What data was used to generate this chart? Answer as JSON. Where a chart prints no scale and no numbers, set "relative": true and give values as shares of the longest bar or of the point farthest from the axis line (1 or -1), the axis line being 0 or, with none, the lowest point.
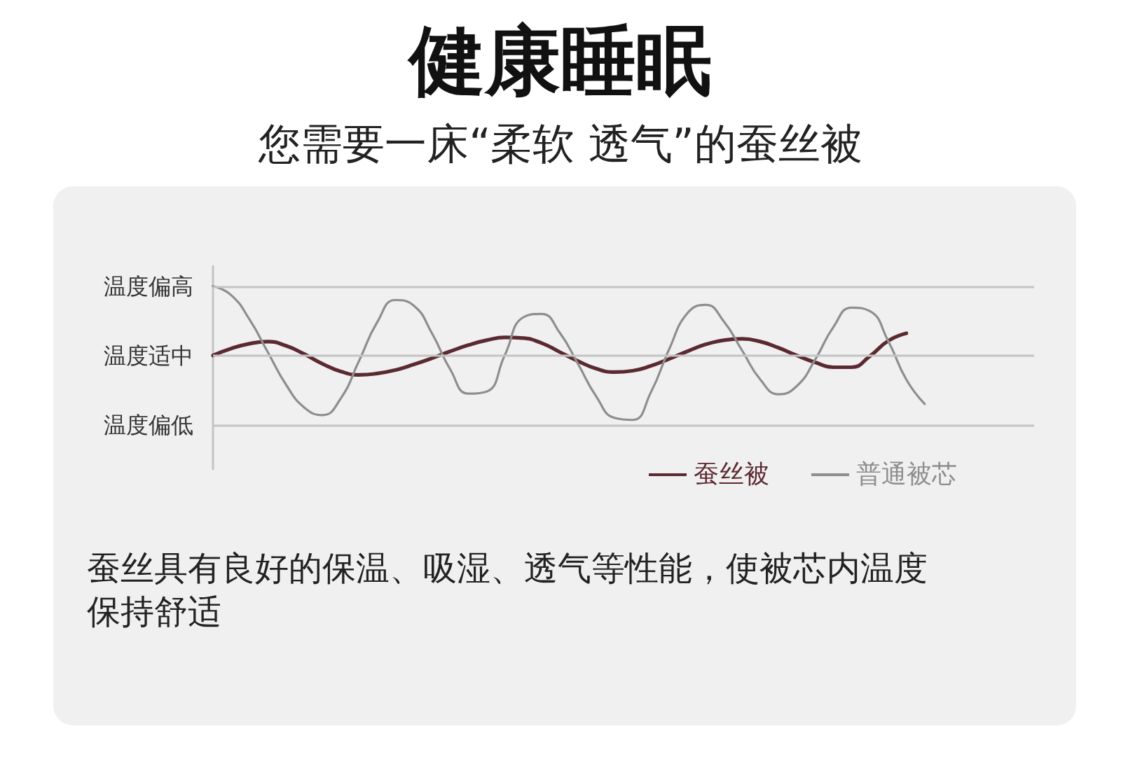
{
  "chart_data": {
    "type": "line",
    "title": "健康睡眠",
    "subtitle": "您需要一床“柔软 透气”的蚕丝被",
    "annotations": [
      "蚕丝具有良好的保温、吸湿、透气等性能，使被芯内温度保持舒适"
    ],
    "categories": [
      null,
      null,
      null,
      null,
      null,
      null,
      null,
      null,
      null,
      null,
      null,
      null,
      null,
      null,
      null,
      null,
      null,
      null,
      null,
      null,
      null,
      null,
      null,
      null,
      null,
      null,
      null,
      null,
      null,
      null,
      null,
      null,
      null,
      null,
      null,
      null,
      null,
      null,
      null,
      null,
      null,
      null,
      null,
      null,
      null,
      null
    ],
    "relative": true,
    "series": [
      {
        "name": "蚕丝被",
        "color": "#5b2a30",
        "values": [
          0,
          0.1,
          0.17,
          0.2,
          0.14,
          0.02,
          -0.12,
          -0.23,
          -0.28,
          -0.26,
          -0.21,
          -0.13,
          -0.04,
          0.06,
          0.15,
          0.22,
          0.26,
          0.25,
          0.18,
          0.05,
          -0.08,
          -0.19,
          -0.24,
          -0.22,
          -0.15,
          -0.05,
          0.06,
          0.16,
          0.22,
          0.24,
          0.2,
          0.11,
          0,
          -0.1,
          -0.17,
          -0.17,
          -0.01,
          0.21,
          0.32,
          null,
          null,
          null,
          null,
          null,
          null,
          null
        ]
      },
      {
        "name": "普通被芯",
        "color": "#8e8e8e",
        "values": [
          1,
          0.87,
          0.52,
          0.05,
          -0.42,
          -0.75,
          -0.86,
          -0.62,
          -0.08,
          0.48,
          0.8,
          0.72,
          0.32,
          -0.2,
          -0.55,
          -0.52,
          0.01,
          0.55,
          0.6,
          0.33,
          -0.12,
          -0.59,
          -0.9,
          -0.93,
          -0.53,
          0.09,
          0.61,
          0.73,
          0.49,
          0.07,
          -0.35,
          -0.56,
          -0.44,
          -0.06,
          0.41,
          0.69,
          0.64,
          0.21,
          -0.35,
          -0.7,
          null,
          null,
          null,
          null,
          null,
          null
        ]
      }
    ],
    "ref_lines": [
      {
        "axis": "y",
        "value": 1,
        "label": "温度偏高",
        "color": "#c4c4c4"
      },
      {
        "axis": "y",
        "value": 0,
        "label": "温度适中",
        "color": "#c4c4c4"
      },
      {
        "axis": "y",
        "value": -1,
        "label": "温度偏低",
        "color": "#c4c4c4"
      }
    ],
    "legend": "bottom right",
    "marker": "none",
    "line_style": "solid"
  }
}
